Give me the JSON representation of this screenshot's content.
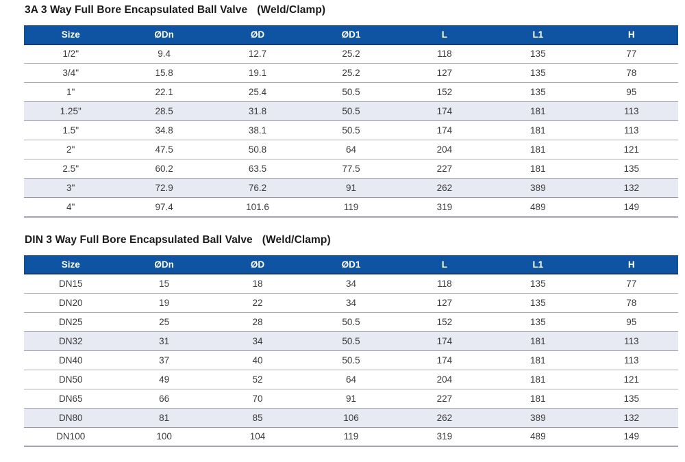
{
  "colors": {
    "header_bg": "#0e54a3",
    "header_text": "#ffffff",
    "row_shaded_bg": "#e7e9f3",
    "row_border": "#a6abb5",
    "body_text": "#3b3b3b"
  },
  "tables": [
    {
      "title": "3A 3 Way Full Bore Encapsulated Ball Valve",
      "title_suffix": "(Weld/Clamp)",
      "columns": [
        "Size",
        "ØDn",
        "ØD",
        "ØD1",
        "L",
        "L1",
        "H"
      ],
      "rows": [
        {
          "shaded": false,
          "cells": [
            "1/2\"",
            "9.4",
            "12.7",
            "25.2",
            "118",
            "135",
            "77"
          ]
        },
        {
          "shaded": false,
          "cells": [
            "3/4\"",
            "15.8",
            "19.1",
            "25.2",
            "127",
            "135",
            "78"
          ]
        },
        {
          "shaded": false,
          "cells": [
            "1\"",
            "22.1",
            "25.4",
            "50.5",
            "152",
            "135",
            "95"
          ]
        },
        {
          "shaded": true,
          "cells": [
            "1.25\"",
            "28.5",
            "31.8",
            "50.5",
            "174",
            "181",
            "113"
          ]
        },
        {
          "shaded": false,
          "cells": [
            "1.5\"",
            "34.8",
            "38.1",
            "50.5",
            "174",
            "181",
            "113"
          ]
        },
        {
          "shaded": false,
          "cells": [
            "2\"",
            "47.5",
            "50.8",
            "64",
            "204",
            "181",
            "121"
          ]
        },
        {
          "shaded": false,
          "cells": [
            "2.5\"",
            "60.2",
            "63.5",
            "77.5",
            "227",
            "181",
            "135"
          ]
        },
        {
          "shaded": true,
          "cells": [
            "3\"",
            "72.9",
            "76.2",
            "91",
            "262",
            "389",
            "132"
          ]
        },
        {
          "shaded": false,
          "cells": [
            "4\"",
            "97.4",
            "101.6",
            "119",
            "319",
            "489",
            "149"
          ]
        }
      ]
    },
    {
      "title": "DIN 3 Way Full Bore Encapsulated Ball Valve",
      "title_suffix": "(Weld/Clamp)",
      "columns": [
        "Size",
        "ØDn",
        "ØD",
        "ØD1",
        "L",
        "L1",
        "H"
      ],
      "rows": [
        {
          "shaded": false,
          "cells": [
            "DN15",
            "15",
            "18",
            "34",
            "118",
            "135",
            "77"
          ]
        },
        {
          "shaded": false,
          "cells": [
            "DN20",
            "19",
            "22",
            "34",
            "127",
            "135",
            "78"
          ]
        },
        {
          "shaded": false,
          "cells": [
            "DN25",
            "25",
            "28",
            "50.5",
            "152",
            "135",
            "95"
          ]
        },
        {
          "shaded": true,
          "cells": [
            "DN32",
            "31",
            "34",
            "50.5",
            "174",
            "181",
            "113"
          ]
        },
        {
          "shaded": false,
          "cells": [
            "DN40",
            "37",
            "40",
            "50.5",
            "174",
            "181",
            "113"
          ]
        },
        {
          "shaded": false,
          "cells": [
            "DN50",
            "49",
            "52",
            "64",
            "204",
            "181",
            "121"
          ]
        },
        {
          "shaded": false,
          "cells": [
            "DN65",
            "66",
            "70",
            "91",
            "227",
            "181",
            "135"
          ]
        },
        {
          "shaded": true,
          "cells": [
            "DN80",
            "81",
            "85",
            "106",
            "262",
            "389",
            "132"
          ]
        },
        {
          "shaded": false,
          "cells": [
            "DN100",
            "100",
            "104",
            "119",
            "319",
            "489",
            "149"
          ]
        }
      ]
    }
  ]
}
